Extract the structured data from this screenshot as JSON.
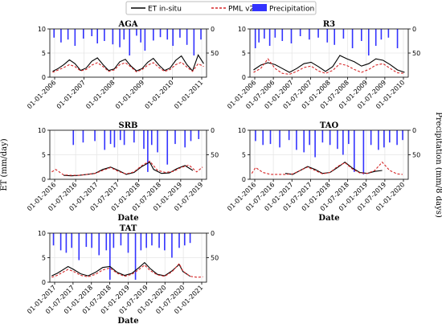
{
  "legend": [
    {
      "label": "ET in-situ",
      "color": "#000000",
      "style": "solid"
    },
    {
      "label": "PML v2",
      "color": "#d62728",
      "style": "dashed"
    },
    {
      "label": "Precipitation",
      "color": "#3333ff",
      "style": "bar"
    }
  ],
  "y_label_left": "ET (mm/day)",
  "y_label_right": "Precipitation (mm/8 days)",
  "colors": {
    "et_insitu": "#000000",
    "pml": "#d62728",
    "precip": "#3333ff",
    "grid": "#e6e6e6"
  },
  "chart_data": [
    {
      "type": "line",
      "title": "AGA",
      "xlabel": "",
      "ylim": [
        0,
        10
      ],
      "y2lim": [
        0,
        100
      ],
      "y2_inverted": true,
      "yticks": [
        "0",
        "5",
        "10"
      ],
      "y2ticks": [
        "0",
        "50"
      ],
      "xticks": [
        "01-01-2006",
        "01-01-2007",
        "01-01-2008",
        "01-01-2009",
        "01-01-2010",
        "01-01-2011"
      ],
      "x_range": [
        2005.9,
        2011.5
      ],
      "series": [
        {
          "name": "ET in-situ",
          "x": [
            2006.0,
            2006.2,
            2006.4,
            2006.6,
            2006.8,
            2007.0,
            2007.2,
            2007.4,
            2007.6,
            2007.8,
            2008.0,
            2008.2,
            2008.4,
            2008.6,
            2008.8,
            2009.0,
            2009.2,
            2009.4,
            2009.6,
            2009.8,
            2010.0,
            2010.2,
            2010.4,
            2010.6,
            2010.8,
            2011.0,
            2011.2,
            2011.4
          ],
          "values": [
            1.2,
            1.8,
            2.6,
            3.6,
            2.8,
            1.4,
            1.9,
            3.3,
            4.0,
            2.6,
            1.4,
            1.7,
            3.2,
            3.7,
            2.3,
            1.3,
            1.8,
            3.1,
            3.9,
            2.5,
            1.4,
            1.9,
            3.5,
            4.4,
            2.6,
            1.3,
            4.6,
            2.8
          ]
        },
        {
          "name": "PML v2",
          "x": [
            2006.0,
            2006.2,
            2006.4,
            2006.6,
            2006.8,
            2007.0,
            2007.2,
            2007.4,
            2007.6,
            2007.8,
            2008.0,
            2008.2,
            2008.4,
            2008.6,
            2008.8,
            2009.0,
            2009.2,
            2009.4,
            2009.6,
            2009.8,
            2010.0,
            2010.2,
            2010.4,
            2010.6,
            2010.8,
            2011.0,
            2011.2,
            2011.4
          ],
          "values": [
            1.0,
            1.5,
            2.0,
            2.6,
            2.2,
            1.3,
            1.6,
            2.5,
            3.0,
            2.2,
            1.2,
            1.5,
            2.6,
            3.0,
            2.1,
            1.1,
            1.6,
            2.5,
            3.0,
            2.0,
            1.2,
            1.6,
            2.6,
            3.1,
            2.1,
            1.2,
            2.8,
            2.2
          ]
        },
        {
          "name": "Precipitation",
          "x": [
            2006.05,
            2006.3,
            2006.55,
            2006.8,
            2007.1,
            2007.4,
            2007.6,
            2007.85,
            2008.15,
            2008.4,
            2008.55,
            2008.75,
            2009.0,
            2009.15,
            2009.3,
            2009.6,
            2009.85,
            2010.1,
            2010.3,
            2010.55,
            2010.8,
            2011.05,
            2011.3
          ],
          "values": [
            18,
            28,
            22,
            35,
            20,
            15,
            30,
            25,
            32,
            38,
            22,
            55,
            14,
            28,
            45,
            24,
            17,
            22,
            35,
            18,
            33,
            55,
            22
          ]
        }
      ]
    },
    {
      "type": "line",
      "title": "R3",
      "xlabel": "",
      "ylim": [
        0,
        10
      ],
      "y2lim": [
        0,
        100
      ],
      "y2_inverted": true,
      "yticks": [
        "0",
        "5",
        "10"
      ],
      "y2ticks": [
        "0",
        "50"
      ],
      "xticks": [
        "01-01-2006",
        "01-07-2006",
        "01-01-2007",
        "01-07-2007",
        "01-01-2008",
        "01-07-2008",
        "01-01-2009",
        "01-07-2009",
        "01-01-2010"
      ],
      "x_range": [
        2005.9,
        2010.3
      ],
      "series": [
        {
          "name": "ET in-situ",
          "x": [
            2006.0,
            2006.2,
            2006.4,
            2006.6,
            2006.8,
            2007.0,
            2007.2,
            2007.4,
            2007.6,
            2007.8,
            2008.0,
            2008.2,
            2008.4,
            2008.6,
            2008.8,
            2009.0,
            2009.2,
            2009.4,
            2009.6,
            2009.8,
            2010.0,
            2010.2
          ],
          "values": [
            1.5,
            2.5,
            3.0,
            2.6,
            1.8,
            1.0,
            1.8,
            2.8,
            3.1,
            2.2,
            1.2,
            2.2,
            4.5,
            3.8,
            3.2,
            2.3,
            2.8,
            3.8,
            3.5,
            2.6,
            1.5,
            1.0
          ]
        },
        {
          "name": "PML v2",
          "x": [
            2006.0,
            2006.2,
            2006.4,
            2006.6,
            2006.8,
            2007.0,
            2007.2,
            2007.4,
            2007.6,
            2007.8,
            2008.0,
            2008.2,
            2008.4,
            2008.6,
            2008.8,
            2009.0,
            2009.2,
            2009.4,
            2009.6,
            2009.8,
            2010.0,
            2010.2
          ],
          "values": [
            1.0,
            1.8,
            3.8,
            1.8,
            0.8,
            0.6,
            1.2,
            2.0,
            2.3,
            1.3,
            0.8,
            1.4,
            2.8,
            2.4,
            1.6,
            1.0,
            1.6,
            2.5,
            2.8,
            1.8,
            0.9,
            0.8
          ]
        },
        {
          "name": "Precipitation",
          "x": [
            2006.05,
            2006.15,
            2006.3,
            2006.45,
            2006.6,
            2006.8,
            2007.05,
            2007.3,
            2007.55,
            2007.8,
            2008.05,
            2008.25,
            2008.5,
            2008.75,
            2009.0,
            2009.2,
            2009.4,
            2009.55,
            2009.75,
            2010.0
          ],
          "values": [
            40,
            28,
            20,
            35,
            18,
            25,
            30,
            15,
            22,
            18,
            28,
            33,
            20,
            40,
            25,
            55,
            35,
            22,
            18,
            40
          ]
        }
      ]
    },
    {
      "type": "line",
      "title": "SRB",
      "xlabel": "Date",
      "ylim": [
        0,
        10
      ],
      "y2lim": [
        0,
        100
      ],
      "y2_inverted": true,
      "yticks": [
        "0",
        "5",
        "10"
      ],
      "y2ticks": [
        "0",
        "50"
      ],
      "xticks": [
        "01-01-2016",
        "01-07-2016",
        "01-01-2017",
        "01-07-2017",
        "01-01-2018",
        "01-07-2018",
        "01-01-2019",
        "01-07-2019"
      ],
      "x_range": [
        2015.95,
        2019.95
      ],
      "series": [
        {
          "name": "ET in-situ",
          "x": [
            2016.3,
            2016.5,
            2016.7,
            2016.9,
            2017.1,
            2017.3,
            2017.5,
            2017.7,
            2017.9,
            2018.1,
            2018.3,
            2018.5,
            2018.6,
            2018.8,
            2019.0,
            2019.2,
            2019.4,
            2019.6
          ],
          "values": [
            0.8,
            0.7,
            0.8,
            1.0,
            1.2,
            2.0,
            2.5,
            1.8,
            1.0,
            1.4,
            2.6,
            3.5,
            2.0,
            1.2,
            1.3,
            2.2,
            2.8,
            1.8
          ]
        },
        {
          "name": "PML v2",
          "x": [
            2016.0,
            2016.1,
            2016.3,
            2016.5,
            2016.7,
            2016.9,
            2017.1,
            2017.3,
            2017.5,
            2017.7,
            2017.9,
            2018.1,
            2018.3,
            2018.5,
            2018.7,
            2018.9,
            2019.1,
            2019.3,
            2019.5,
            2019.7,
            2019.85
          ],
          "values": [
            1.5,
            2.0,
            0.9,
            0.8,
            0.8,
            1.0,
            1.2,
            1.8,
            2.4,
            1.6,
            1.1,
            1.5,
            2.8,
            3.7,
            1.8,
            1.4,
            1.6,
            2.4,
            2.9,
            1.5,
            2.5
          ]
        },
        {
          "name": "Precipitation",
          "x": [
            2016.55,
            2016.8,
            2017.1,
            2017.35,
            2017.5,
            2017.6,
            2017.75,
            2017.85,
            2018.1,
            2018.35,
            2018.45,
            2018.55,
            2018.7,
            2018.95,
            2019.15,
            2019.4,
            2019.55,
            2019.75
          ],
          "values": [
            30,
            25,
            22,
            40,
            28,
            35,
            20,
            30,
            25,
            38,
            85,
            30,
            45,
            70,
            28,
            35,
            22,
            18
          ]
        }
      ]
    },
    {
      "type": "line",
      "title": "TAO",
      "xlabel": "Date",
      "ylim": [
        0,
        10
      ],
      "y2lim": [
        0,
        100
      ],
      "y2_inverted": true,
      "yticks": [
        "0",
        "5",
        "10"
      ],
      "y2ticks": [
        "0",
        "50"
      ],
      "xticks": [
        "01-01-2016",
        "01-07-2016",
        "01-01-2017",
        "01-07-2017",
        "01-01-2018",
        "01-07-2018",
        "01-01-2019",
        "01-07-2019",
        "01-01-2020"
      ],
      "x_range": [
        2015.95,
        2020.2
      ],
      "series": [
        {
          "name": "ET in-situ",
          "x": [
            2016.9,
            2017.1,
            2017.3,
            2017.5,
            2017.7,
            2017.9,
            2018.1,
            2018.3,
            2018.5,
            2018.7,
            2018.9,
            2019.1,
            2019.3,
            2019.5
          ],
          "values": [
            1.2,
            1.0,
            1.8,
            2.6,
            2.0,
            1.2,
            1.4,
            2.4,
            3.5,
            2.3,
            1.4,
            1.2,
            1.6,
            1.8
          ]
        },
        {
          "name": "PML v2",
          "x": [
            2016.0,
            2016.1,
            2016.3,
            2016.5,
            2016.7,
            2016.9,
            2017.1,
            2017.3,
            2017.5,
            2017.7,
            2017.9,
            2018.1,
            2018.3,
            2018.5,
            2018.7,
            2018.9,
            2019.1,
            2019.3,
            2019.5,
            2019.7,
            2019.9,
            2020.05
          ],
          "values": [
            1.2,
            2.4,
            1.4,
            1.0,
            1.0,
            1.0,
            1.1,
            1.8,
            2.5,
            1.8,
            1.1,
            1.4,
            2.6,
            3.4,
            2.1,
            1.3,
            1.2,
            1.8,
            3.5,
            1.8,
            1.1,
            1.0
          ]
        },
        {
          "name": "Precipitation",
          "x": [
            2016.1,
            2016.3,
            2016.5,
            2016.75,
            2017.0,
            2017.2,
            2017.4,
            2017.55,
            2017.7,
            2017.9,
            2018.1,
            2018.3,
            2018.45,
            2018.6,
            2018.75,
            2019.0,
            2019.2,
            2019.4,
            2019.55,
            2019.7,
            2019.9,
            2020.05
          ],
          "values": [
            22,
            30,
            28,
            35,
            20,
            40,
            45,
            30,
            55,
            25,
            30,
            38,
            50,
            28,
            85,
            90,
            30,
            40,
            35,
            25,
            30,
            20
          ]
        }
      ]
    },
    {
      "type": "line",
      "title": "TAT",
      "xlabel": "Date",
      "ylim": [
        0,
        10
      ],
      "y2lim": [
        0,
        100
      ],
      "y2_inverted": true,
      "yticks": [
        "0",
        "5",
        "10"
      ],
      "y2ticks": [
        "0",
        "50"
      ],
      "xticks": [
        "01-01-2017",
        "01-07-2017",
        "01-01-2018",
        "01-07-2018",
        "01-01-2019",
        "01-07-2019",
        "01-01-2020",
        "01-07-2020",
        "01-01-2021"
      ],
      "x_range": [
        2016.95,
        2021.25
      ],
      "series": [
        {
          "name": "ET in-situ",
          "x": [
            2017.0,
            2017.15,
            2017.3,
            2017.45,
            2017.6,
            2017.8,
            2018.0,
            2018.2,
            2018.4,
            2018.6,
            2018.8,
            2019.0,
            2019.2,
            2019.4,
            2019.55,
            2019.7,
            2019.9,
            2020.1,
            2020.3,
            2020.5,
            2020.6,
            2020.8
          ],
          "values": [
            1.3,
            1.8,
            2.5,
            3.2,
            2.6,
            1.7,
            1.3,
            2.0,
            3.0,
            3.2,
            2.0,
            1.4,
            1.8,
            3.0,
            4.0,
            2.8,
            1.6,
            1.3,
            2.3,
            3.6,
            2.2,
            1.2
          ]
        },
        {
          "name": "PML v2",
          "x": [
            2017.0,
            2017.15,
            2017.3,
            2017.45,
            2017.6,
            2017.8,
            2018.0,
            2018.2,
            2018.4,
            2018.6,
            2018.8,
            2019.0,
            2019.2,
            2019.4,
            2019.55,
            2019.7,
            2019.9,
            2020.1,
            2020.3,
            2020.5,
            2020.6,
            2020.8,
            2021.0,
            2021.15
          ],
          "values": [
            1.0,
            1.4,
            2.0,
            2.6,
            2.2,
            1.4,
            1.1,
            1.6,
            2.5,
            2.9,
            1.8,
            1.2,
            1.6,
            2.6,
            3.5,
            2.4,
            1.5,
            1.2,
            2.1,
            3.8,
            2.3,
            1.2,
            1.0,
            1.1
          ]
        },
        {
          "name": "Precipitation",
          "x": [
            2017.05,
            2017.25,
            2017.4,
            2017.55,
            2017.75,
            2017.95,
            2018.1,
            2018.3,
            2018.5,
            2018.6,
            2018.7,
            2018.9,
            2019.1,
            2019.3,
            2019.45,
            2019.6,
            2019.75,
            2019.95,
            2020.1,
            2020.3,
            2020.5,
            2020.65,
            2020.8
          ],
          "values": [
            25,
            35,
            40,
            30,
            55,
            28,
            30,
            45,
            35,
            95,
            30,
            25,
            40,
            95,
            35,
            30,
            25,
            30,
            35,
            50,
            30,
            25,
            20
          ]
        }
      ]
    }
  ]
}
